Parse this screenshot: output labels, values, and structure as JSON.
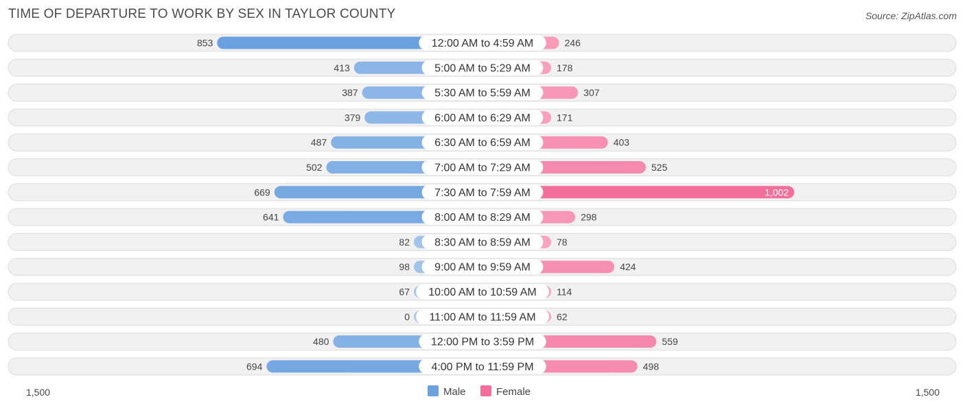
{
  "title": "TIME OF DEPARTURE TO WORK BY SEX IN TAYLOR COUNTY",
  "source": "Source: ZipAtlas.com",
  "colors": {
    "male": "#6aa1de",
    "male_light": "#a8c8ee",
    "female": "#f46e9b",
    "female_light": "#f8a9c3",
    "row_bg": "#f1f1f1",
    "row_border": "#dcdcdc"
  },
  "chart_data": {
    "type": "bar",
    "orientation": "horizontal-diverging",
    "categories": [
      "12:00 AM to 4:59 AM",
      "5:00 AM to 5:29 AM",
      "5:30 AM to 5:59 AM",
      "6:00 AM to 6:29 AM",
      "6:30 AM to 6:59 AM",
      "7:00 AM to 7:29 AM",
      "7:30 AM to 7:59 AM",
      "8:00 AM to 8:29 AM",
      "8:30 AM to 8:59 AM",
      "9:00 AM to 9:59 AM",
      "10:00 AM to 10:59 AM",
      "11:00 AM to 11:59 AM",
      "12:00 PM to 3:59 PM",
      "4:00 PM to 11:59 PM"
    ],
    "series": [
      {
        "name": "Male",
        "values": [
          853,
          413,
          387,
          379,
          487,
          502,
          669,
          641,
          82,
          98,
          67,
          0,
          480,
          694
        ],
        "labels": [
          "853",
          "413",
          "387",
          "379",
          "487",
          "502",
          "669",
          "641",
          "82",
          "98",
          "67",
          "0",
          "480",
          "694"
        ]
      },
      {
        "name": "Female",
        "values": [
          246,
          178,
          307,
          171,
          403,
          525,
          1002,
          298,
          78,
          424,
          114,
          62,
          559,
          498
        ],
        "labels": [
          "246",
          "178",
          "307",
          "171",
          "403",
          "525",
          "1,002",
          "298",
          "78",
          "424",
          "114",
          "62",
          "559",
          "498"
        ]
      }
    ],
    "axis_max": 1500,
    "axis_left_label": "1,500",
    "axis_right_label": "1,500",
    "legend": [
      "Male",
      "Female"
    ],
    "legend_position": "bottom-center"
  }
}
